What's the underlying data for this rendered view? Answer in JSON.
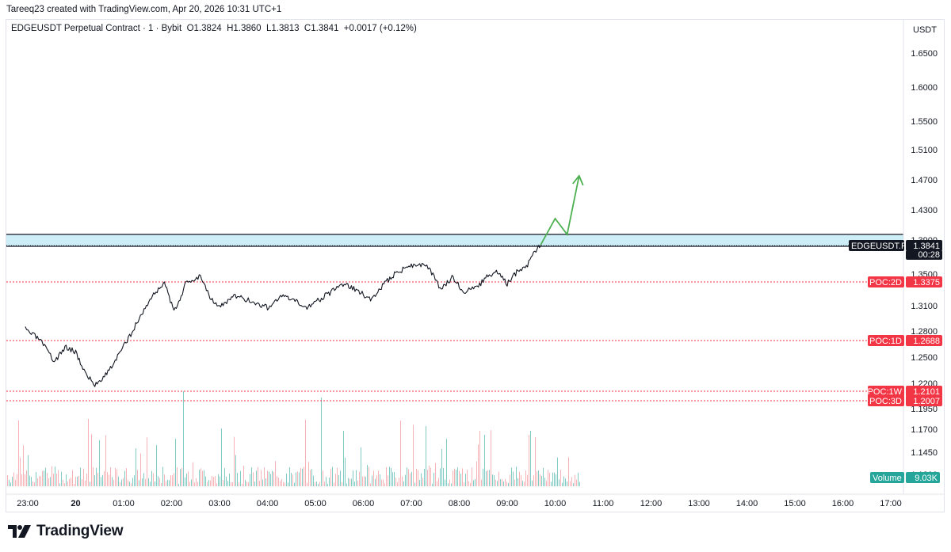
{
  "header": {
    "created_by": "Tareeq23 created with TradingView.com, Apr 20, 2026 10:31 UTC+1"
  },
  "legend": {
    "symbol": "EDGEUSDT Perpetual Contract · 1 · Bybit",
    "open": "O1.3824",
    "high": "H1.3860",
    "low": "L1.3813",
    "close": "C1.3841",
    "change": "+0.0017 (+0.12%)"
  },
  "footer": {
    "brand": "TradingView"
  },
  "colors": {
    "zone_fill": "#cdeef6",
    "poc": "#f23645",
    "arrow": "#4caf50",
    "volume_up": "#80cbc4",
    "volume_down": "#f7b2b7",
    "price_label": "#131722",
    "volume_label": "#26a69a"
  },
  "chart_data": {
    "type": "line",
    "currency": "USDT",
    "x_ticks": [
      "23:00",
      "20",
      "01:00",
      "02:00",
      "03:00",
      "04:00",
      "05:00",
      "06:00",
      "07:00",
      "08:00",
      "09:00",
      "10:00",
      "11:00",
      "12:00",
      "13:00",
      "14:00",
      "15:00",
      "16:00",
      "17:00"
    ],
    "y_ticks": [
      "1.6500",
      "1.6000",
      "1.5500",
      "1.5100",
      "1.4700",
      "1.4300",
      "1.3900",
      "1.3500",
      "1.3100",
      "1.2800",
      "1.2500",
      "1.2200",
      "1.1950",
      "1.1700",
      "1.1450",
      "1.1200"
    ],
    "price_series": {
      "name": "EDGEUSDT",
      "x": [
        -0.05,
        0.25,
        0.55,
        0.8,
        1.0,
        1.2,
        1.4,
        1.7,
        2.0,
        2.3,
        2.55,
        2.85,
        3.05,
        3.3,
        3.6,
        3.8,
        4.0,
        4.3,
        4.55,
        4.8,
        5.0,
        5.3,
        5.55,
        5.8,
        6.2,
        6.6,
        6.9,
        7.15,
        7.4,
        7.65,
        7.9,
        8.1,
        8.35,
        8.6,
        8.85,
        9.1,
        9.35,
        9.55,
        9.8,
        10.0,
        10.2,
        10.4,
        10.55,
        10.7
      ],
      "y": [
        1.282,
        1.27,
        1.245,
        1.262,
        1.256,
        1.232,
        1.218,
        1.235,
        1.262,
        1.292,
        1.318,
        1.34,
        1.302,
        1.338,
        1.348,
        1.322,
        1.308,
        1.322,
        1.318,
        1.312,
        1.308,
        1.322,
        1.316,
        1.308,
        1.322,
        1.338,
        1.328,
        1.318,
        1.335,
        1.35,
        1.358,
        1.362,
        1.358,
        1.332,
        1.345,
        1.328,
        1.332,
        1.345,
        1.352,
        1.338,
        1.352,
        1.358,
        1.375,
        1.384
      ]
    },
    "projection": {
      "x": [
        10.7,
        11.0,
        11.25,
        11.5
      ],
      "y": [
        1.3875,
        1.4175,
        1.3975,
        1.475
      ]
    },
    "resistance_zone": {
      "low": 1.3815,
      "high": 1.3975
    },
    "poc_levels": [
      {
        "label": "POC:2D",
        "value": "1.3375"
      },
      {
        "label": "POC:1D",
        "value": "1.2688"
      },
      {
        "label": "POC:1W",
        "value": "1.2101"
      },
      {
        "label": "POC:3D",
        "value": "1.2007"
      }
    ],
    "last_price": {
      "symbol": "EDGEUSDT.P",
      "value": "1.3841",
      "countdown": "00:28"
    },
    "volume": {
      "label": "Volume",
      "value": "9.03K"
    },
    "grid": false,
    "xlabel": "",
    "ylabel": ""
  }
}
